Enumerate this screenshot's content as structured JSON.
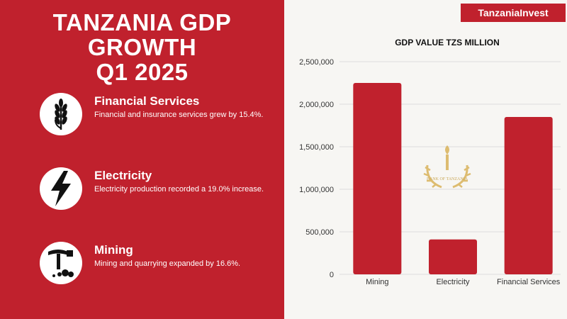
{
  "header": {
    "title_lines": [
      "TANZANIA GDP",
      "GROWTH",
      "Q1 2025"
    ]
  },
  "brand": {
    "name": "TanzaniaInvest"
  },
  "sectors": [
    {
      "name": "Financial Services",
      "description": "Financial and insurance services grew by 15.4%.",
      "icon": "wheat-icon"
    },
    {
      "name": "Electricity",
      "description": "Electricity production recorded a 19.0% increase.",
      "icon": "lightning-bolt-icon"
    },
    {
      "name": "Mining",
      "description": "Mining and quarrying expanded by 16.6%.",
      "icon": "pickaxe-icon"
    }
  ],
  "colors": {
    "accent": "#c0212d",
    "panel": "#f7f6f3",
    "gold": "#d9b25a"
  },
  "chart_data": {
    "type": "bar",
    "title": "GDP VALUE TZS MILLION",
    "categories": [
      "Mining",
      "Electricity",
      "Financial Services"
    ],
    "values": [
      2250000,
      410000,
      1850000
    ],
    "ylim": [
      0,
      2500000
    ],
    "yticks": [
      0,
      500000,
      1000000,
      1500000,
      2000000,
      2500000
    ],
    "ytick_labels": [
      "0",
      "500,000",
      "1,000,000",
      "1,500,000",
      "2,000,000",
      "2,500,000"
    ],
    "grid": true,
    "watermark_text": "BANK OF TANZANIA"
  }
}
